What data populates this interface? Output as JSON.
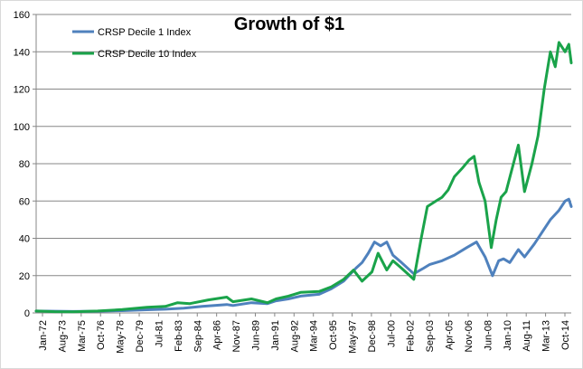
{
  "chart_data": {
    "type": "line",
    "title": "Growth of $1",
    "xlabel": "",
    "ylabel": "",
    "ylim": [
      0,
      160
    ],
    "y_ticks": [
      0,
      20,
      40,
      60,
      80,
      100,
      120,
      140,
      160
    ],
    "x_tick_labels": [
      "Jan-72",
      "Aug-73",
      "Mar-75",
      "Oct-76",
      "May-78",
      "Dec-79",
      "Jul-81",
      "Feb-83",
      "Sep-84",
      "Apr-86",
      "Nov-87",
      "Jun-89",
      "Jan-91",
      "Aug-92",
      "Mar-94",
      "Oct-95",
      "May-97",
      "Dec-98",
      "Jul-00",
      "Feb-02",
      "Sep-03",
      "Apr-05",
      "Nov-06",
      "Jun-08",
      "Jan-10",
      "Aug-11",
      "Mar-13",
      "Oct-14"
    ],
    "x_start": 1972.0,
    "x_end": 2015.5,
    "grid": true,
    "legend_position": "top-left",
    "series": [
      {
        "name": "CRSP Decile 1 Index",
        "color": "#4f81bd",
        "points": [
          [
            1972.0,
            1.0
          ],
          [
            1973.5,
            0.9
          ],
          [
            1975.0,
            0.8
          ],
          [
            1977.0,
            0.9
          ],
          [
            1979.0,
            1.2
          ],
          [
            1981.0,
            1.7
          ],
          [
            1982.5,
            2.0
          ],
          [
            1984.0,
            2.5
          ],
          [
            1985.5,
            3.5
          ],
          [
            1987.5,
            4.5
          ],
          [
            1988.0,
            4.0
          ],
          [
            1989.5,
            5.5
          ],
          [
            1990.8,
            5.0
          ],
          [
            1991.5,
            6.5
          ],
          [
            1992.5,
            7.5
          ],
          [
            1993.5,
            9.0
          ],
          [
            1995.0,
            10.0
          ],
          [
            1996.0,
            13.0
          ],
          [
            1997.0,
            17.0
          ],
          [
            1998.0,
            24.0
          ],
          [
            1998.5,
            27.0
          ],
          [
            1999.0,
            32.0
          ],
          [
            1999.5,
            38.0
          ],
          [
            2000.0,
            36.0
          ],
          [
            2000.5,
            38.0
          ],
          [
            2001.0,
            31.0
          ],
          [
            2001.7,
            27.0
          ],
          [
            2002.7,
            21.0
          ],
          [
            2003.5,
            24.0
          ],
          [
            2004.0,
            26.0
          ],
          [
            2005.0,
            28.0
          ],
          [
            2006.0,
            31.0
          ],
          [
            2007.0,
            35.0
          ],
          [
            2007.8,
            38.0
          ],
          [
            2008.5,
            30.0
          ],
          [
            2009.1,
            20.0
          ],
          [
            2009.6,
            28.0
          ],
          [
            2010.0,
            29.0
          ],
          [
            2010.5,
            27.0
          ],
          [
            2011.2,
            34.0
          ],
          [
            2011.7,
            30.0
          ],
          [
            2012.5,
            37.0
          ],
          [
            2013.0,
            42.0
          ],
          [
            2013.8,
            50.0
          ],
          [
            2014.5,
            55.0
          ],
          [
            2015.0,
            60.0
          ],
          [
            2015.3,
            61.0
          ],
          [
            2015.5,
            57.0
          ]
        ]
      },
      {
        "name": "CRSP Decile 10 Index",
        "color": "#1aa34a",
        "points": [
          [
            1972.0,
            1.0
          ],
          [
            1973.5,
            0.7
          ],
          [
            1975.0,
            0.6
          ],
          [
            1977.0,
            1.0
          ],
          [
            1979.0,
            1.8
          ],
          [
            1981.0,
            3.0
          ],
          [
            1982.5,
            3.5
          ],
          [
            1983.5,
            5.5
          ],
          [
            1984.5,
            5.0
          ],
          [
            1986.0,
            7.0
          ],
          [
            1987.5,
            8.5
          ],
          [
            1988.0,
            6.0
          ],
          [
            1989.5,
            7.5
          ],
          [
            1990.8,
            5.5
          ],
          [
            1991.5,
            7.5
          ],
          [
            1992.5,
            9.0
          ],
          [
            1993.5,
            11.0
          ],
          [
            1995.0,
            11.5
          ],
          [
            1996.0,
            14.0
          ],
          [
            1997.0,
            18.0
          ],
          [
            1997.8,
            23.0
          ],
          [
            1998.5,
            17.0
          ],
          [
            1999.3,
            22.0
          ],
          [
            1999.8,
            32.0
          ],
          [
            2000.5,
            23.0
          ],
          [
            2001.0,
            28.0
          ],
          [
            2001.7,
            24.0
          ],
          [
            2002.7,
            18.0
          ],
          [
            2003.3,
            40.0
          ],
          [
            2003.8,
            57.0
          ],
          [
            2004.5,
            60.0
          ],
          [
            2005.0,
            62.0
          ],
          [
            2005.5,
            66.0
          ],
          [
            2006.0,
            73.0
          ],
          [
            2006.7,
            78.0
          ],
          [
            2007.2,
            82.0
          ],
          [
            2007.6,
            84.0
          ],
          [
            2008.0,
            70.0
          ],
          [
            2008.5,
            60.0
          ],
          [
            2009.0,
            35.0
          ],
          [
            2009.4,
            50.0
          ],
          [
            2009.8,
            62.0
          ],
          [
            2010.2,
            65.0
          ],
          [
            2010.6,
            75.0
          ],
          [
            2011.2,
            90.0
          ],
          [
            2011.7,
            65.0
          ],
          [
            2012.3,
            80.0
          ],
          [
            2012.8,
            95.0
          ],
          [
            2013.3,
            120.0
          ],
          [
            2013.8,
            140.0
          ],
          [
            2014.2,
            132.0
          ],
          [
            2014.5,
            145.0
          ],
          [
            2015.0,
            140.0
          ],
          [
            2015.3,
            144.0
          ],
          [
            2015.5,
            134.0
          ]
        ]
      }
    ]
  }
}
